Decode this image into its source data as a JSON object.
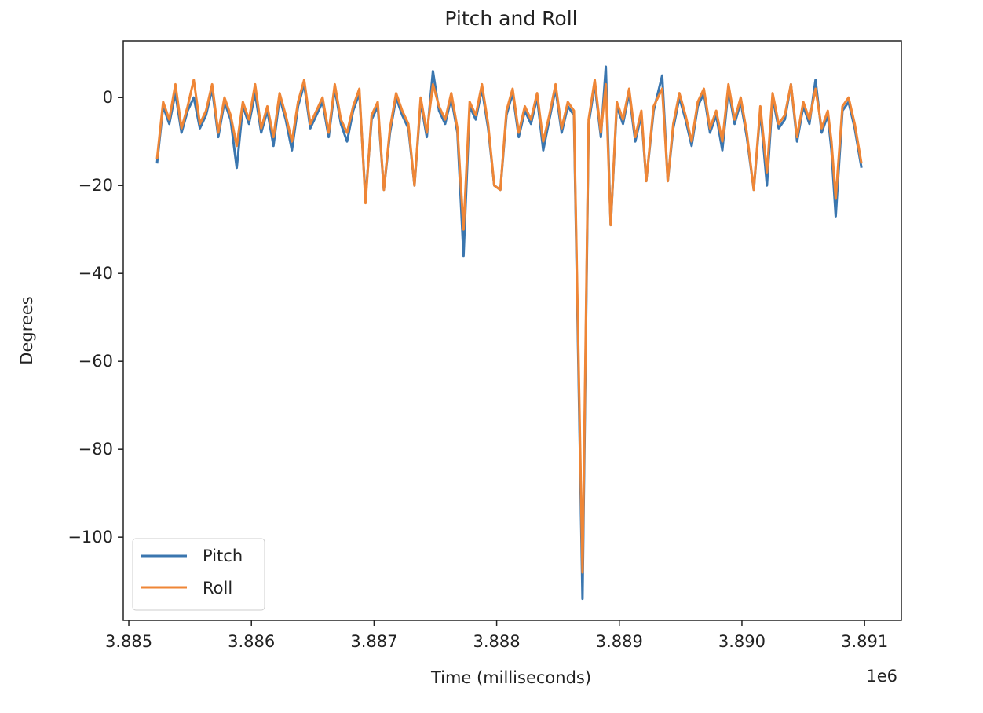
{
  "chart_data": {
    "type": "line",
    "title": "Pitch and Roll",
    "xlabel": "Time (milliseconds)",
    "ylabel": "Degrees",
    "x_offset_label": "1e6",
    "xlim": [
      3884955,
      3891300
    ],
    "ylim": [
      -118.9,
      12.9
    ],
    "x_ticks": [
      3885000,
      3886000,
      3887000,
      3888000,
      3889000,
      3890000,
      3891000
    ],
    "x_tick_labels": [
      "3.885",
      "3.886",
      "3.887",
      "3.888",
      "3.889",
      "3.890",
      "3.891"
    ],
    "y_ticks": [
      0,
      -20,
      -40,
      -60,
      -80,
      -100
    ],
    "y_tick_labels": [
      "0",
      "−20",
      "−40",
      "−60",
      "−80",
      "−100"
    ],
    "grid": false,
    "legend_position": "lower-left",
    "x": [
      3885230,
      3885280,
      3885330,
      3885380,
      3885430,
      3885480,
      3885530,
      3885580,
      3885630,
      3885680,
      3885730,
      3885780,
      3885830,
      3885880,
      3885930,
      3885980,
      3886030,
      3886080,
      3886130,
      3886180,
      3886230,
      3886280,
      3886330,
      3886380,
      3886430,
      3886480,
      3886530,
      3886580,
      3886630,
      3886680,
      3886730,
      3886780,
      3886830,
      3886880,
      3886930,
      3886980,
      3887030,
      3887080,
      3887130,
      3887180,
      3887230,
      3887280,
      3887330,
      3887380,
      3887430,
      3887480,
      3887530,
      3887580,
      3887630,
      3887680,
      3887730,
      3887780,
      3887830,
      3887880,
      3887930,
      3887980,
      3888030,
      3888080,
      3888130,
      3888180,
      3888230,
      3888280,
      3888330,
      3888380,
      3888430,
      3888480,
      3888530,
      3888580,
      3888630,
      3888700,
      3888750,
      3888800,
      3888850,
      3888890,
      3888930,
      3888980,
      3889030,
      3889080,
      3889130,
      3889180,
      3889220,
      3889280,
      3889350,
      3889395,
      3889440,
      3889490,
      3889540,
      3889590,
      3889640,
      3889690,
      3889740,
      3889790,
      3889840,
      3889890,
      3889940,
      3889990,
      3890040,
      3890096,
      3890150,
      3890204,
      3890250,
      3890300,
      3890350,
      3890400,
      3890450,
      3890500,
      3890550,
      3890600,
      3890650,
      3890700,
      3890730,
      3890765,
      3890820,
      3890870,
      3890920,
      3890975
    ],
    "series": [
      {
        "name": "Pitch",
        "color": "#3a76af",
        "values": [
          -15,
          -2,
          -6,
          1,
          -8,
          -3,
          0,
          -7,
          -4,
          2,
          -9,
          -1,
          -5,
          -16,
          -2,
          -6,
          1,
          -8,
          -3,
          -11,
          0,
          -5,
          -12,
          -2,
          3,
          -7,
          -4,
          -1,
          -9,
          2,
          -6,
          -10,
          -3,
          1,
          -23,
          -5,
          -2,
          -21,
          -8,
          0,
          -4,
          -7,
          -20,
          -1,
          -9,
          6,
          -3,
          -6,
          0,
          -8,
          -36,
          -2,
          -5,
          2,
          -7,
          -20,
          -21,
          -4,
          1,
          -9,
          -3,
          -6,
          0,
          -12,
          -5,
          2,
          -8,
          -2,
          -4,
          -114,
          -6,
          3,
          -9,
          7,
          -29,
          -2,
          -6,
          1,
          -10,
          -4,
          -19,
          -3,
          5,
          -19,
          -7,
          0,
          -5,
          -11,
          -2,
          1,
          -8,
          -4,
          -12,
          2,
          -6,
          -1,
          -9,
          -21,
          -3,
          -20,
          0,
          -7,
          -5,
          3,
          -10,
          -2,
          -6,
          4,
          -8,
          -4,
          -12,
          -27,
          -3,
          -1,
          -7,
          -16
        ]
      },
      {
        "name": "Roll",
        "color": "#ef8636",
        "values": [
          -14,
          -1,
          -5,
          3,
          -7,
          -2,
          4,
          -6,
          -3,
          3,
          -8,
          0,
          -4,
          -11,
          -1,
          -5,
          3,
          -7,
          -2,
          -9,
          1,
          -4,
          -10,
          -1,
          4,
          -6,
          -3,
          0,
          -8,
          3,
          -5,
          -8,
          -2,
          2,
          -24,
          -4,
          -1,
          -21,
          -7,
          1,
          -3,
          -6,
          -20,
          0,
          -8,
          3,
          -2,
          -5,
          1,
          -7,
          -30,
          -1,
          -4,
          3,
          -6,
          -20,
          -21,
          -3,
          2,
          -8,
          -2,
          -5,
          1,
          -10,
          -4,
          3,
          -7,
          -1,
          -3,
          -108,
          -5,
          4,
          -8,
          3,
          -29,
          -1,
          -5,
          2,
          -9,
          -3,
          -19,
          -2,
          2,
          -19,
          -6,
          1,
          -4,
          -10,
          -1,
          2,
          -7,
          -3,
          -10,
          3,
          -5,
          0,
          -8,
          -21,
          -2,
          -17,
          1,
          -6,
          -4,
          3,
          -9,
          -1,
          -5,
          2,
          -7,
          -3,
          -10,
          -23,
          -2,
          0,
          -6,
          -15
        ]
      }
    ]
  }
}
